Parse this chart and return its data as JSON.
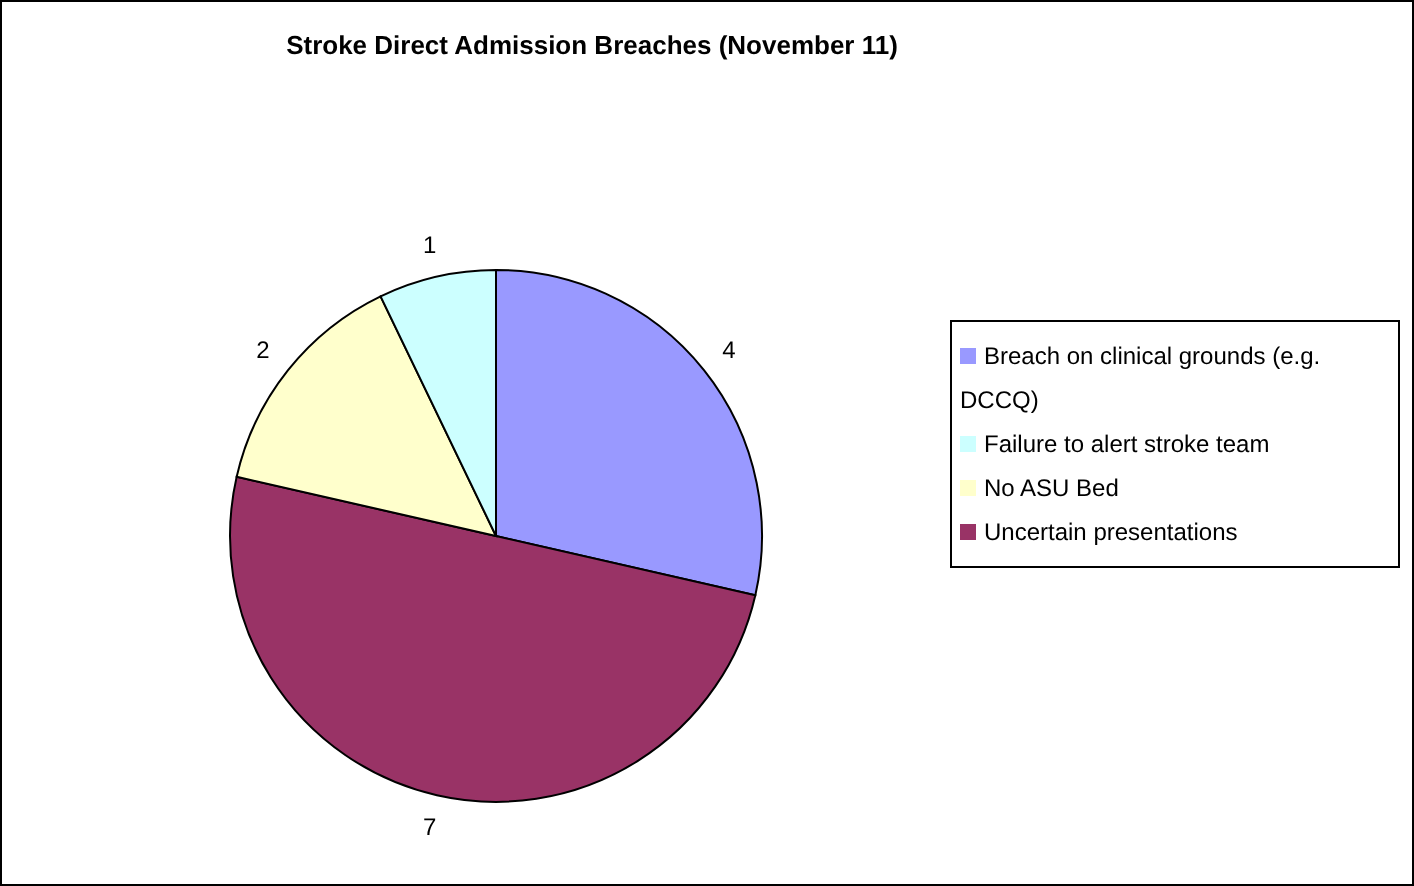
{
  "chart_data": {
    "type": "pie",
    "title": "Stroke Direct Admission Breaches (November 11)",
    "categories": [
      "Breach on clinical grounds (e.g. DCCQ)",
      "Uncertain presentations",
      "No ASU Bed",
      "Failure to alert stroke team"
    ],
    "values": [
      4,
      7,
      2,
      1
    ],
    "colors": [
      "#9999ff",
      "#993366",
      "#ffffcc",
      "#ccffff"
    ],
    "data_labels": true,
    "legend": "right"
  }
}
